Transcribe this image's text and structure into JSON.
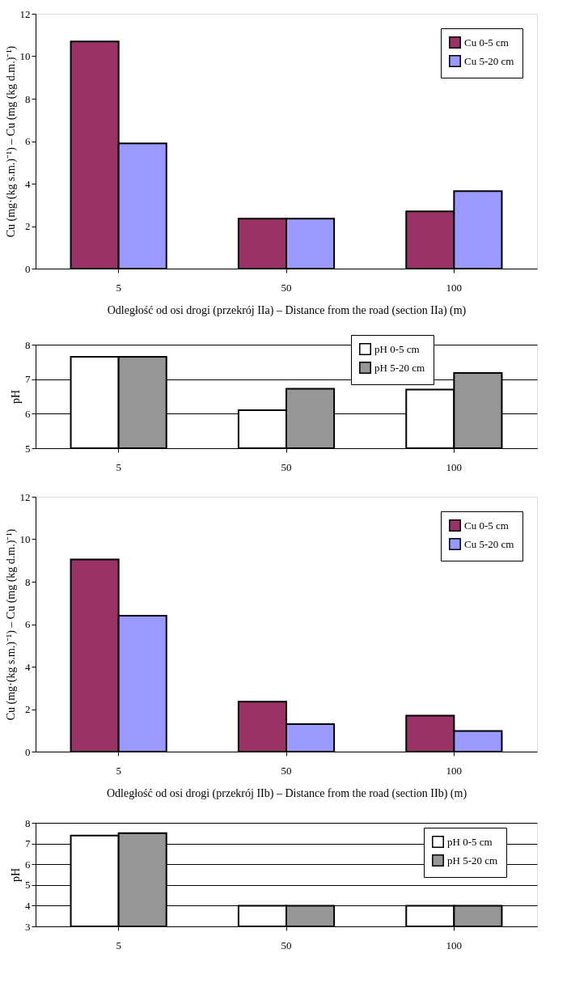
{
  "chart_data": [
    {
      "type": "bar",
      "categories": [
        "5",
        "50",
        "100"
      ],
      "xlabel": "Odległość od osi drogi (przekrój IIa) – Distance from the road (section IIa) (m)",
      "ylabel": "Cu  (mg·(kg s.m.)⁻¹) – Cu  (mg (kg d.m.)⁻¹)",
      "ylim": [
        0,
        12
      ],
      "yticks": [
        0,
        2,
        4,
        6,
        8,
        10,
        12
      ],
      "grid": false,
      "legend": "top right",
      "series": [
        {
          "name": "Cu 0-5 cm",
          "color": "#993366",
          "values": [
            10.7,
            2.35,
            2.7
          ]
        },
        {
          "name": "Cu 5-20 cm",
          "color": "#9999ff",
          "values": [
            5.9,
            2.35,
            3.65
          ]
        }
      ]
    },
    {
      "type": "bar",
      "categories": [
        "5",
        "50",
        "100"
      ],
      "ylabel": "pH",
      "ylim": [
        5,
        8
      ],
      "yticks": [
        5,
        6,
        7,
        8
      ],
      "grid": "y",
      "legend": "top",
      "series": [
        {
          "name": "pH 0-5 cm",
          "color": "#ffffff",
          "values": [
            7.65,
            6.1,
            6.7
          ]
        },
        {
          "name": "pH 5-20 cm",
          "color": "#969696",
          "values": [
            7.65,
            6.72,
            7.18
          ]
        }
      ]
    },
    {
      "type": "bar",
      "categories": [
        "5",
        "50",
        "100"
      ],
      "xlabel": "Odległość od osi drogi (przekrój IIb) – Distance from the road (section IIb) (m)",
      "ylabel": "Cu  (mg·(kg s.m.)⁻¹) – Cu  (mg (kg d.m.)⁻¹)",
      "ylim": [
        0,
        12
      ],
      "yticks": [
        0,
        2,
        4,
        6,
        8,
        10,
        12
      ],
      "grid": false,
      "legend": "top right",
      "series": [
        {
          "name": "Cu 0-5 cm",
          "color": "#993366",
          "values": [
            9.05,
            2.35,
            1.7
          ]
        },
        {
          "name": "Cu 5-20 cm",
          "color": "#9999ff",
          "values": [
            6.4,
            1.3,
            0.97
          ]
        }
      ]
    },
    {
      "type": "bar",
      "categories": [
        "5",
        "50",
        "100"
      ],
      "ylabel": "pH",
      "ylim": [
        3,
        8
      ],
      "yticks": [
        3,
        4,
        5,
        6,
        7,
        8
      ],
      "grid": "y",
      "legend": "right",
      "series": [
        {
          "name": "pH 0-5 cm",
          "color": "#ffffff",
          "values": [
            7.38,
            4.0,
            4.0
          ]
        },
        {
          "name": "pH 5-20 cm",
          "color": "#969696",
          "values": [
            7.5,
            4.0,
            4.0
          ]
        }
      ]
    }
  ]
}
